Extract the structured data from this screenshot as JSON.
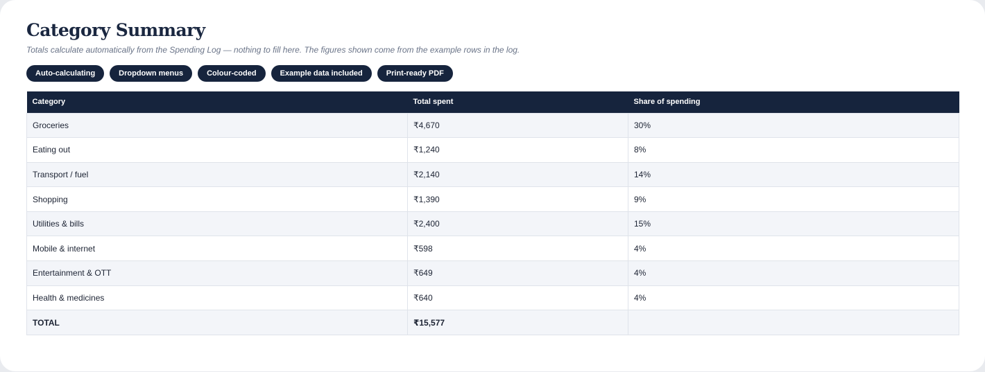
{
  "page": {
    "title": "Category Summary",
    "subtitle": "Totals calculate automatically from the Spending Log — nothing to fill here. The figures shown come from the example rows in the log."
  },
  "tags": [
    {
      "label": "Auto-calculating"
    },
    {
      "label": "Dropdown menus"
    },
    {
      "label": "Colour-coded"
    },
    {
      "label": "Example data included"
    },
    {
      "label": "Print-ready PDF"
    }
  ],
  "table": {
    "headers": {
      "category": "Category",
      "total": "Total spent",
      "share": "Share of spending"
    },
    "rows": [
      {
        "category": "Groceries",
        "total": "₹4,670",
        "share": "30%"
      },
      {
        "category": "Eating out",
        "total": "₹1,240",
        "share": "8%"
      },
      {
        "category": "Transport / fuel",
        "total": "₹2,140",
        "share": "14%"
      },
      {
        "category": "Shopping",
        "total": "₹1,390",
        "share": "9%"
      },
      {
        "category": "Utilities & bills",
        "total": "₹2,400",
        "share": "15%"
      },
      {
        "category": "Mobile & internet",
        "total": "₹598",
        "share": "4%"
      },
      {
        "category": "Entertainment & OTT",
        "total": "₹649",
        "share": "4%"
      },
      {
        "category": "Health & medicines",
        "total": "₹640",
        "share": "4%"
      }
    ],
    "total_row": {
      "label": "TOTAL",
      "total": "₹15,577",
      "share": ""
    }
  },
  "colors": {
    "navy": "#16243d",
    "title": "#1a2740",
    "row_stripe": "#f3f5f9",
    "border": "#dfe3ea"
  }
}
